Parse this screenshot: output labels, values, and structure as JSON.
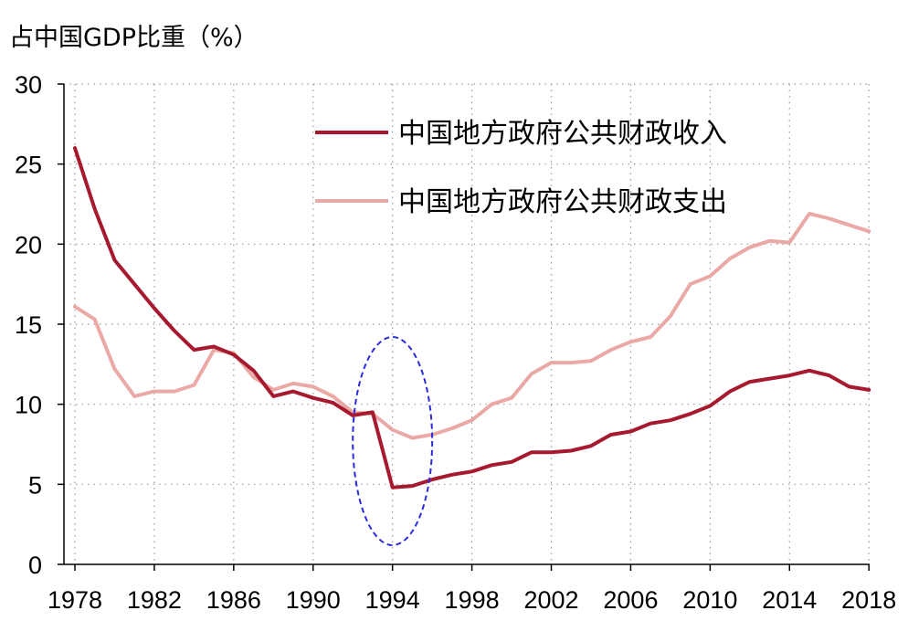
{
  "chart_data": {
    "type": "line",
    "ylabel": "占中国GDP比重（%）",
    "xlabel": "",
    "ylim": [
      0,
      30
    ],
    "xlim": [
      1978,
      2018
    ],
    "yticks": [
      0,
      5,
      10,
      15,
      20,
      25,
      30
    ],
    "xticks": [
      1978,
      1982,
      1986,
      1990,
      1994,
      1998,
      2002,
      2006,
      2010,
      2014,
      2018
    ],
    "grid": "dotted",
    "legend_position": "top-right",
    "years": [
      1978,
      1979,
      1980,
      1981,
      1982,
      1983,
      1984,
      1985,
      1986,
      1987,
      1988,
      1989,
      1990,
      1991,
      1992,
      1993,
      1994,
      1995,
      1996,
      1997,
      1998,
      1999,
      2000,
      2001,
      2002,
      2003,
      2004,
      2005,
      2006,
      2007,
      2008,
      2009,
      2010,
      2011,
      2012,
      2013,
      2014,
      2015,
      2016,
      2017,
      2018
    ],
    "series": [
      {
        "name": "中国地方政府公共财政收入",
        "color": "#A6192E",
        "values": [
          26.0,
          22.2,
          19.0,
          17.5,
          16.0,
          14.6,
          13.4,
          13.6,
          13.1,
          12.1,
          10.5,
          10.8,
          10.4,
          10.1,
          9.3,
          9.5,
          4.8,
          4.9,
          5.3,
          5.6,
          5.8,
          6.2,
          6.4,
          7.0,
          7.0,
          7.1,
          7.4,
          8.1,
          8.3,
          8.8,
          9.0,
          9.4,
          9.9,
          10.8,
          11.4,
          11.6,
          11.8,
          12.1,
          11.8,
          11.1,
          10.9
        ]
      },
      {
        "name": "中国地方政府公共财政支出",
        "color": "#EAA9A6",
        "values": [
          16.1,
          15.3,
          12.2,
          10.5,
          10.8,
          10.8,
          11.2,
          13.4,
          13.2,
          11.7,
          10.9,
          11.3,
          11.1,
          10.5,
          9.5,
          9.4,
          8.4,
          7.9,
          8.1,
          8.5,
          9.0,
          10.0,
          10.4,
          11.9,
          12.6,
          12.6,
          12.7,
          13.4,
          13.9,
          14.2,
          15.5,
          17.5,
          18.0,
          19.1,
          19.8,
          20.2,
          20.1,
          21.9,
          21.6,
          21.2,
          20.8
        ]
      }
    ],
    "annotation": {
      "type": "dashed-ellipse",
      "color": "#2B2BE0",
      "center_year": 1994,
      "y_range": [
        1.2,
        14.2
      ],
      "year_range": [
        1992,
        1996
      ]
    }
  }
}
